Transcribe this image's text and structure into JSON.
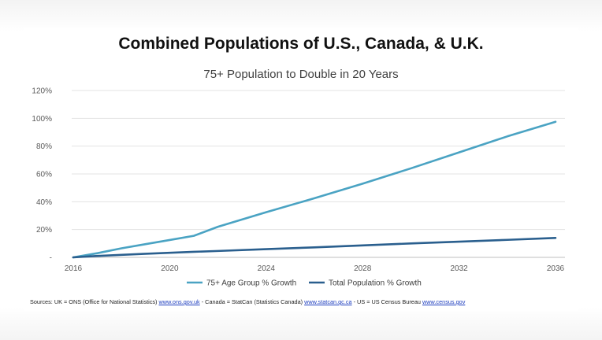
{
  "chart_data": {
    "type": "line",
    "title": "Combined Populations of U.S., Canada, & U.K.",
    "subtitle": "75+ Population to Double in 20 Years",
    "xlabel": "",
    "ylabel": "",
    "x": [
      2016,
      2017,
      2018,
      2019,
      2020,
      2021,
      2022,
      2024,
      2026,
      2028,
      2030,
      2032,
      2034,
      2036
    ],
    "x_ticks": [
      "2016",
      "2020",
      "2024",
      "2028",
      "2032",
      "2036"
    ],
    "y_ticks": [
      "-",
      "20%",
      "40%",
      "60%",
      "80%",
      "100%",
      "120%"
    ],
    "xlim": [
      2016,
      2036
    ],
    "ylim": [
      0,
      120
    ],
    "grid": "horizontal",
    "legend_position": "bottom",
    "series": [
      {
        "name": "75+ Age Group % Growth",
        "color": "#4aa3c3",
        "values": [
          0,
          3,
          6.5,
          9.5,
          12.5,
          15.5,
          22,
          32.5,
          42.5,
          53,
          64,
          75.5,
          87,
          97.5
        ]
      },
      {
        "name": "Total Population % Growth",
        "color": "#2a5f8e",
        "values": [
          0,
          1,
          1.8,
          2.6,
          3.3,
          4,
          4.6,
          5.9,
          7.2,
          8.6,
          10,
          11.3,
          12.6,
          14
        ]
      }
    ]
  },
  "sources": {
    "prefix": "Sources:  UK = ONS (Office for National Statistics) ",
    "uk_link": "www.ons.gov.uk",
    "mid1": " - Canada = StatCan (Statistics Canada) ",
    "ca_link": "www.statcan.gc.ca",
    "mid2": " - US = US Census Bureau ",
    "us_link": "www.census.gov"
  }
}
